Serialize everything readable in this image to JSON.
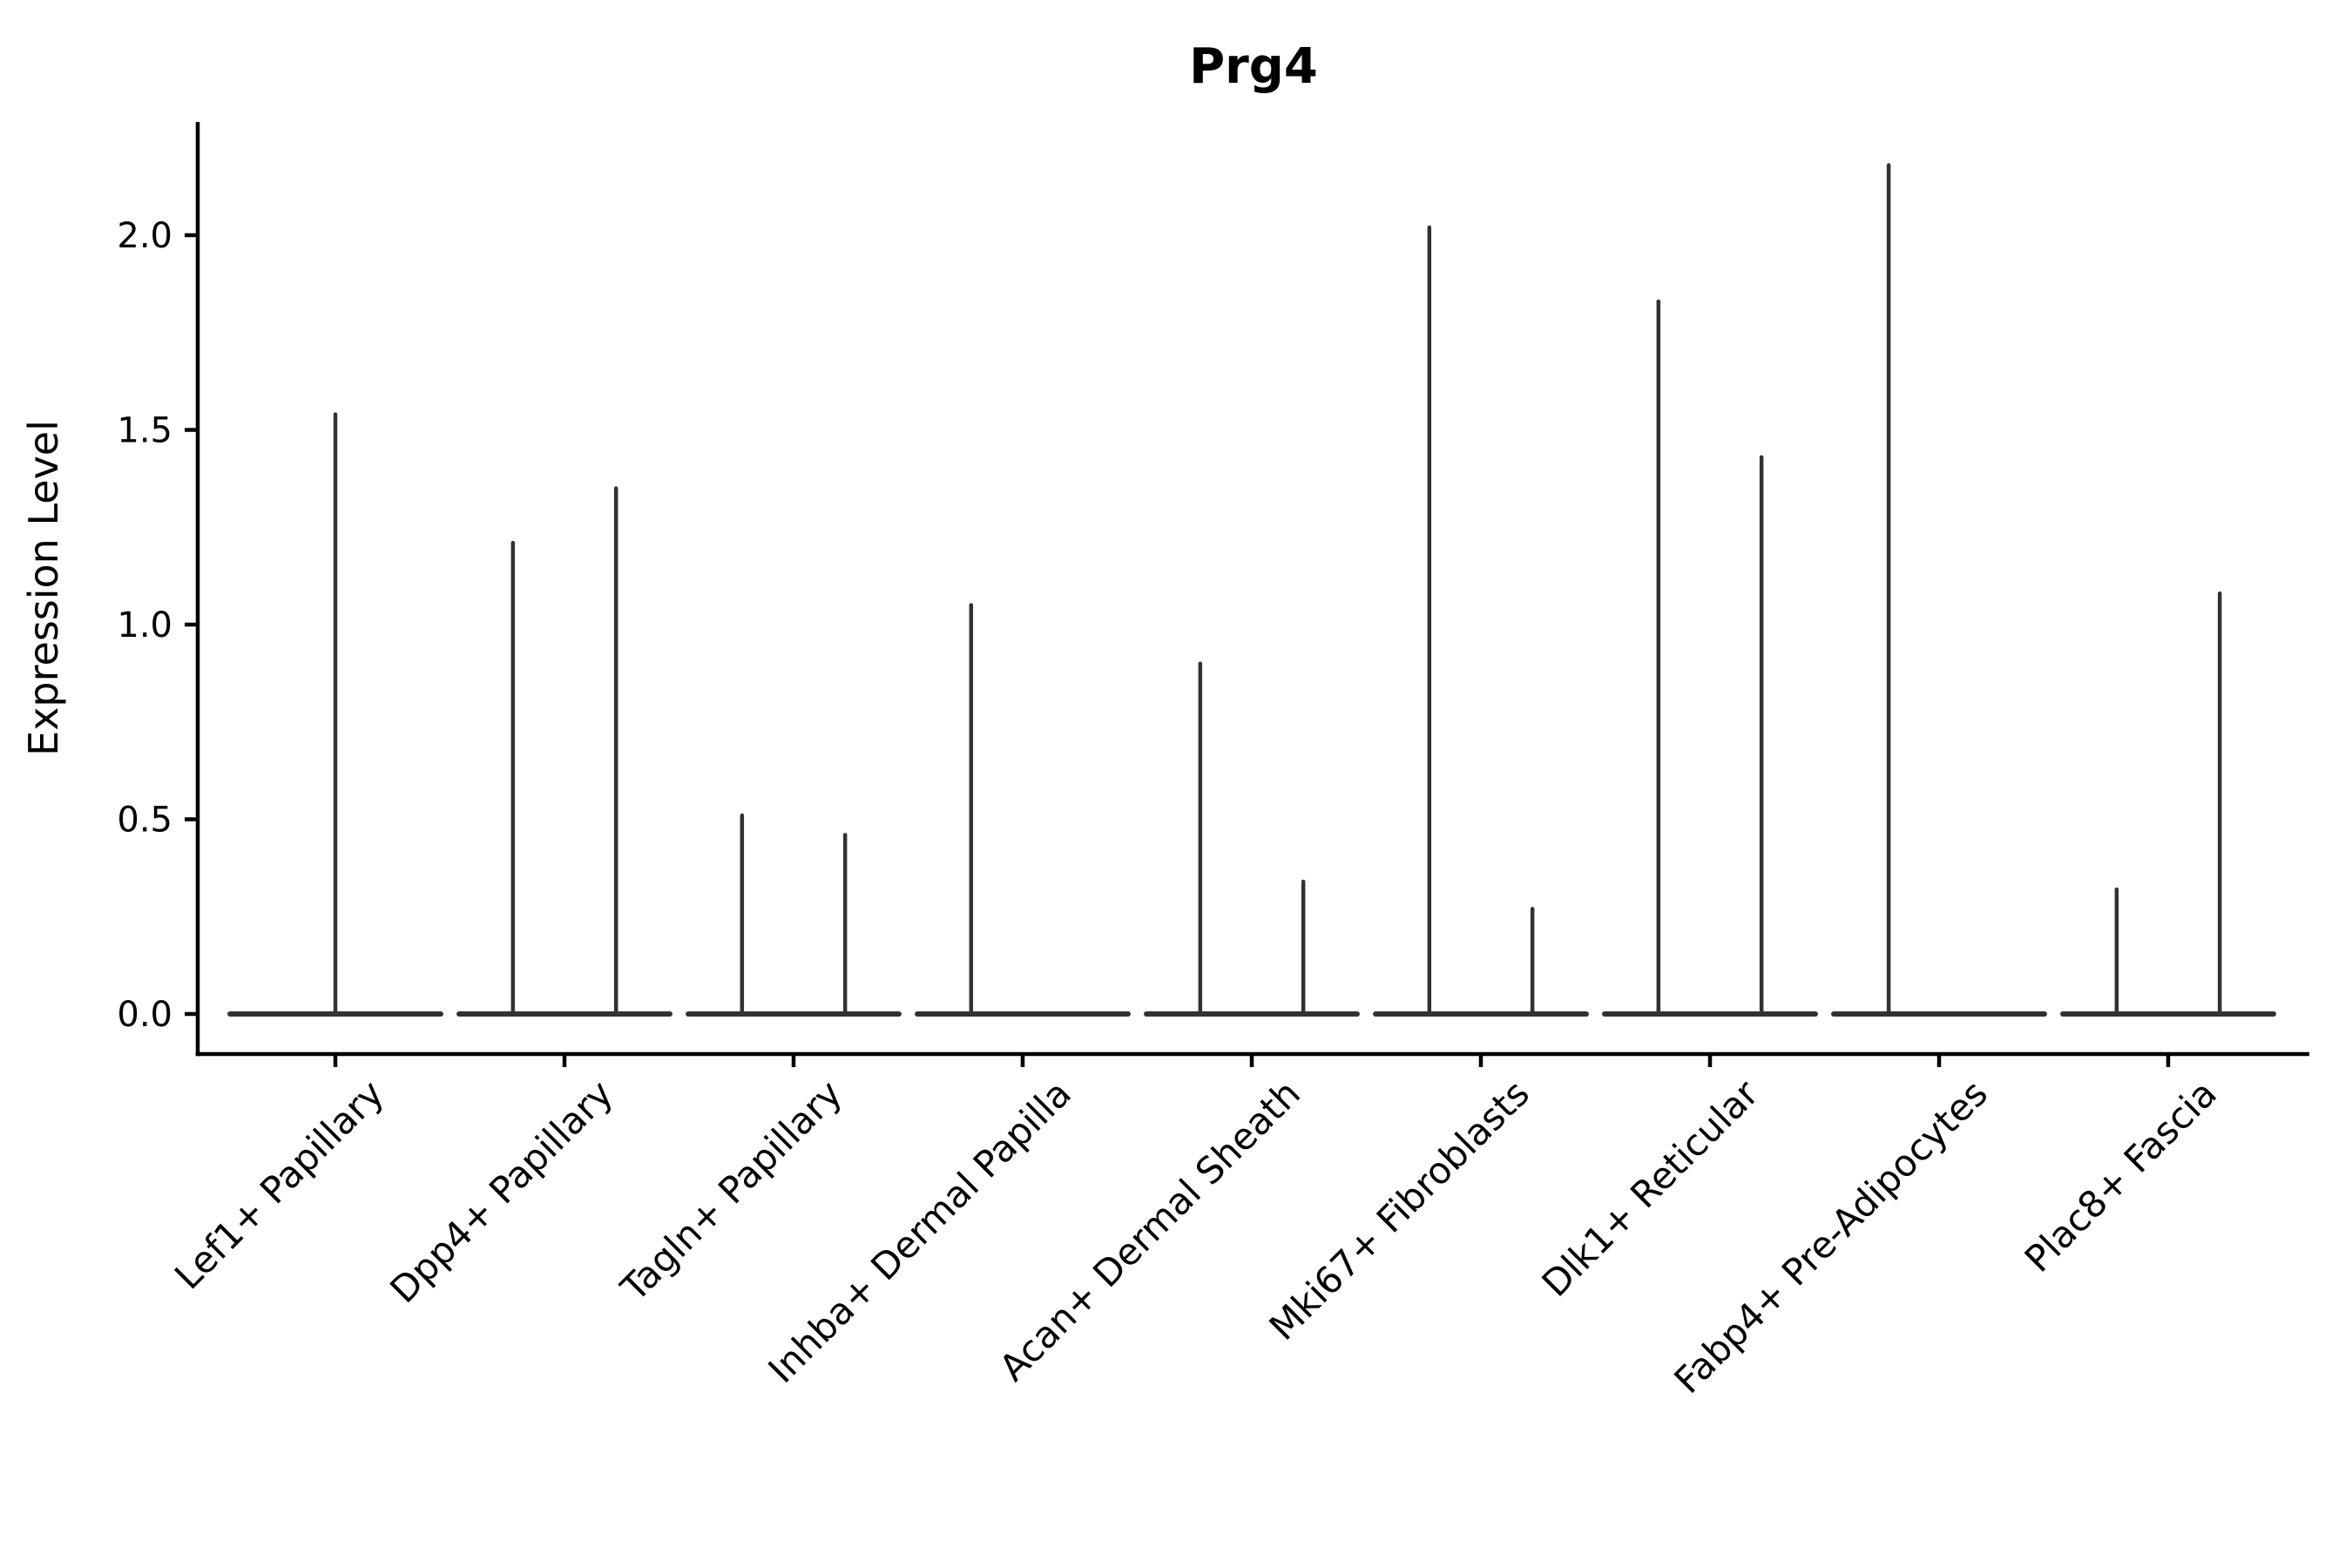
{
  "figure": {
    "title": "Prg4"
  },
  "chart_data": {
    "type": "violin",
    "title": "Prg4",
    "subtitle": "",
    "xlabel": "",
    "ylabel": "Expression Level",
    "ytick_values": [
      0.0,
      0.5,
      1.0,
      1.5,
      2.0
    ],
    "ytick_labels": [
      "0.0",
      "0.5",
      "1.0",
      "1.5",
      "2.0"
    ],
    "ylim": [
      -0.1,
      2.29
    ],
    "grid": false,
    "legend": null,
    "axis_color": "#000000",
    "violin_color": "#323232",
    "baseline_value": 0.0,
    "body_halfwidth_frac": 0.46,
    "categories": [
      "Lef1+ Papillary",
      "Dpp4+ Papillary",
      "Tagln+ Papillary",
      "Inhba+ Dermal Papilla",
      "Acan+ Dermal Sheath",
      "Mki67+ Fibroblasts",
      "Dlk1+ Reticular",
      "Fabp4+ Pre-Adipocytes",
      "Plac8+ Fascia"
    ],
    "violins": [
      {
        "category": "Lef1+ Papillary",
        "spikes": [
          {
            "dx": 0.0,
            "peak": 1.54
          }
        ]
      },
      {
        "category": "Dpp4+ Papillary",
        "spikes": [
          {
            "dx": -0.225,
            "peak": 1.21
          },
          {
            "dx": 0.225,
            "peak": 1.35
          }
        ]
      },
      {
        "category": "Tagln+ Papillary",
        "spikes": [
          {
            "dx": -0.225,
            "peak": 0.51
          },
          {
            "dx": 0.225,
            "peak": 0.46
          }
        ]
      },
      {
        "category": "Inhba+ Dermal Papilla",
        "spikes": [
          {
            "dx": -0.225,
            "peak": 1.05
          }
        ]
      },
      {
        "category": "Acan+ Dermal Sheath",
        "spikes": [
          {
            "dx": -0.225,
            "peak": 0.9
          },
          {
            "dx": 0.225,
            "peak": 0.34
          }
        ]
      },
      {
        "category": "Mki67+ Fibroblasts",
        "spikes": [
          {
            "dx": -0.225,
            "peak": 2.02
          },
          {
            "dx": 0.225,
            "peak": 0.27
          }
        ]
      },
      {
        "category": "Dlk1+ Reticular",
        "spikes": [
          {
            "dx": -0.225,
            "peak": 1.83
          },
          {
            "dx": 0.225,
            "peak": 1.43
          }
        ]
      },
      {
        "category": "Fabp4+ Pre-Adipocytes",
        "spikes": [
          {
            "dx": -0.22,
            "peak": 2.18
          }
        ]
      },
      {
        "category": "Plac8+ Fascia",
        "spikes": [
          {
            "dx": -0.225,
            "peak": 0.32
          },
          {
            "dx": 0.225,
            "peak": 1.08
          }
        ]
      }
    ]
  }
}
